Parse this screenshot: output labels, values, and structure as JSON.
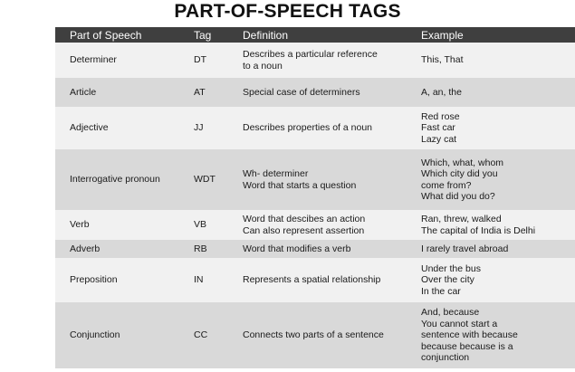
{
  "title": "PART-OF-SPEECH TAGS",
  "table": {
    "headers": [
      "Part of Speech",
      "Tag",
      "Definition",
      "Example"
    ],
    "rows": [
      {
        "pos": "Determiner",
        "tag": "DT",
        "definition": "Describes a particular reference\nto a noun",
        "example": "This, That"
      },
      {
        "pos": "Article",
        "tag": "AT",
        "definition": "Special case of determiners",
        "example": "A, an, the"
      },
      {
        "pos": "Adjective",
        "tag": "JJ",
        "definition": "Describes properties of a noun",
        "example": "Red rose\nFast car\nLazy cat"
      },
      {
        "pos": "Interrogative pronoun",
        "tag": "WDT",
        "definition": "Wh- determiner\nWord that starts a question",
        "example": "Which, what, whom\nWhich city did you\ncome from?\nWhat did you do?"
      },
      {
        "pos": "Verb",
        "tag": "VB",
        "definition": "Word that descibes an action\nCan also represent assertion",
        "example": "Ran, threw, walked\nThe capital of India is Delhi"
      },
      {
        "pos": "Adverb",
        "tag": "RB",
        "definition": "Word that modifies a verb",
        "example": "I rarely travel abroad"
      },
      {
        "pos": "Preposition",
        "tag": "IN",
        "definition": "Represents a spatial relationship",
        "example": "Under the bus\nOver the city\nIn the car"
      },
      {
        "pos": "Conjunction",
        "tag": "CC",
        "definition": "Connects two parts of a sentence",
        "example": "And, because\nYou cannot start a\nsentence with because\nbecause because is a\nconjunction"
      }
    ]
  }
}
